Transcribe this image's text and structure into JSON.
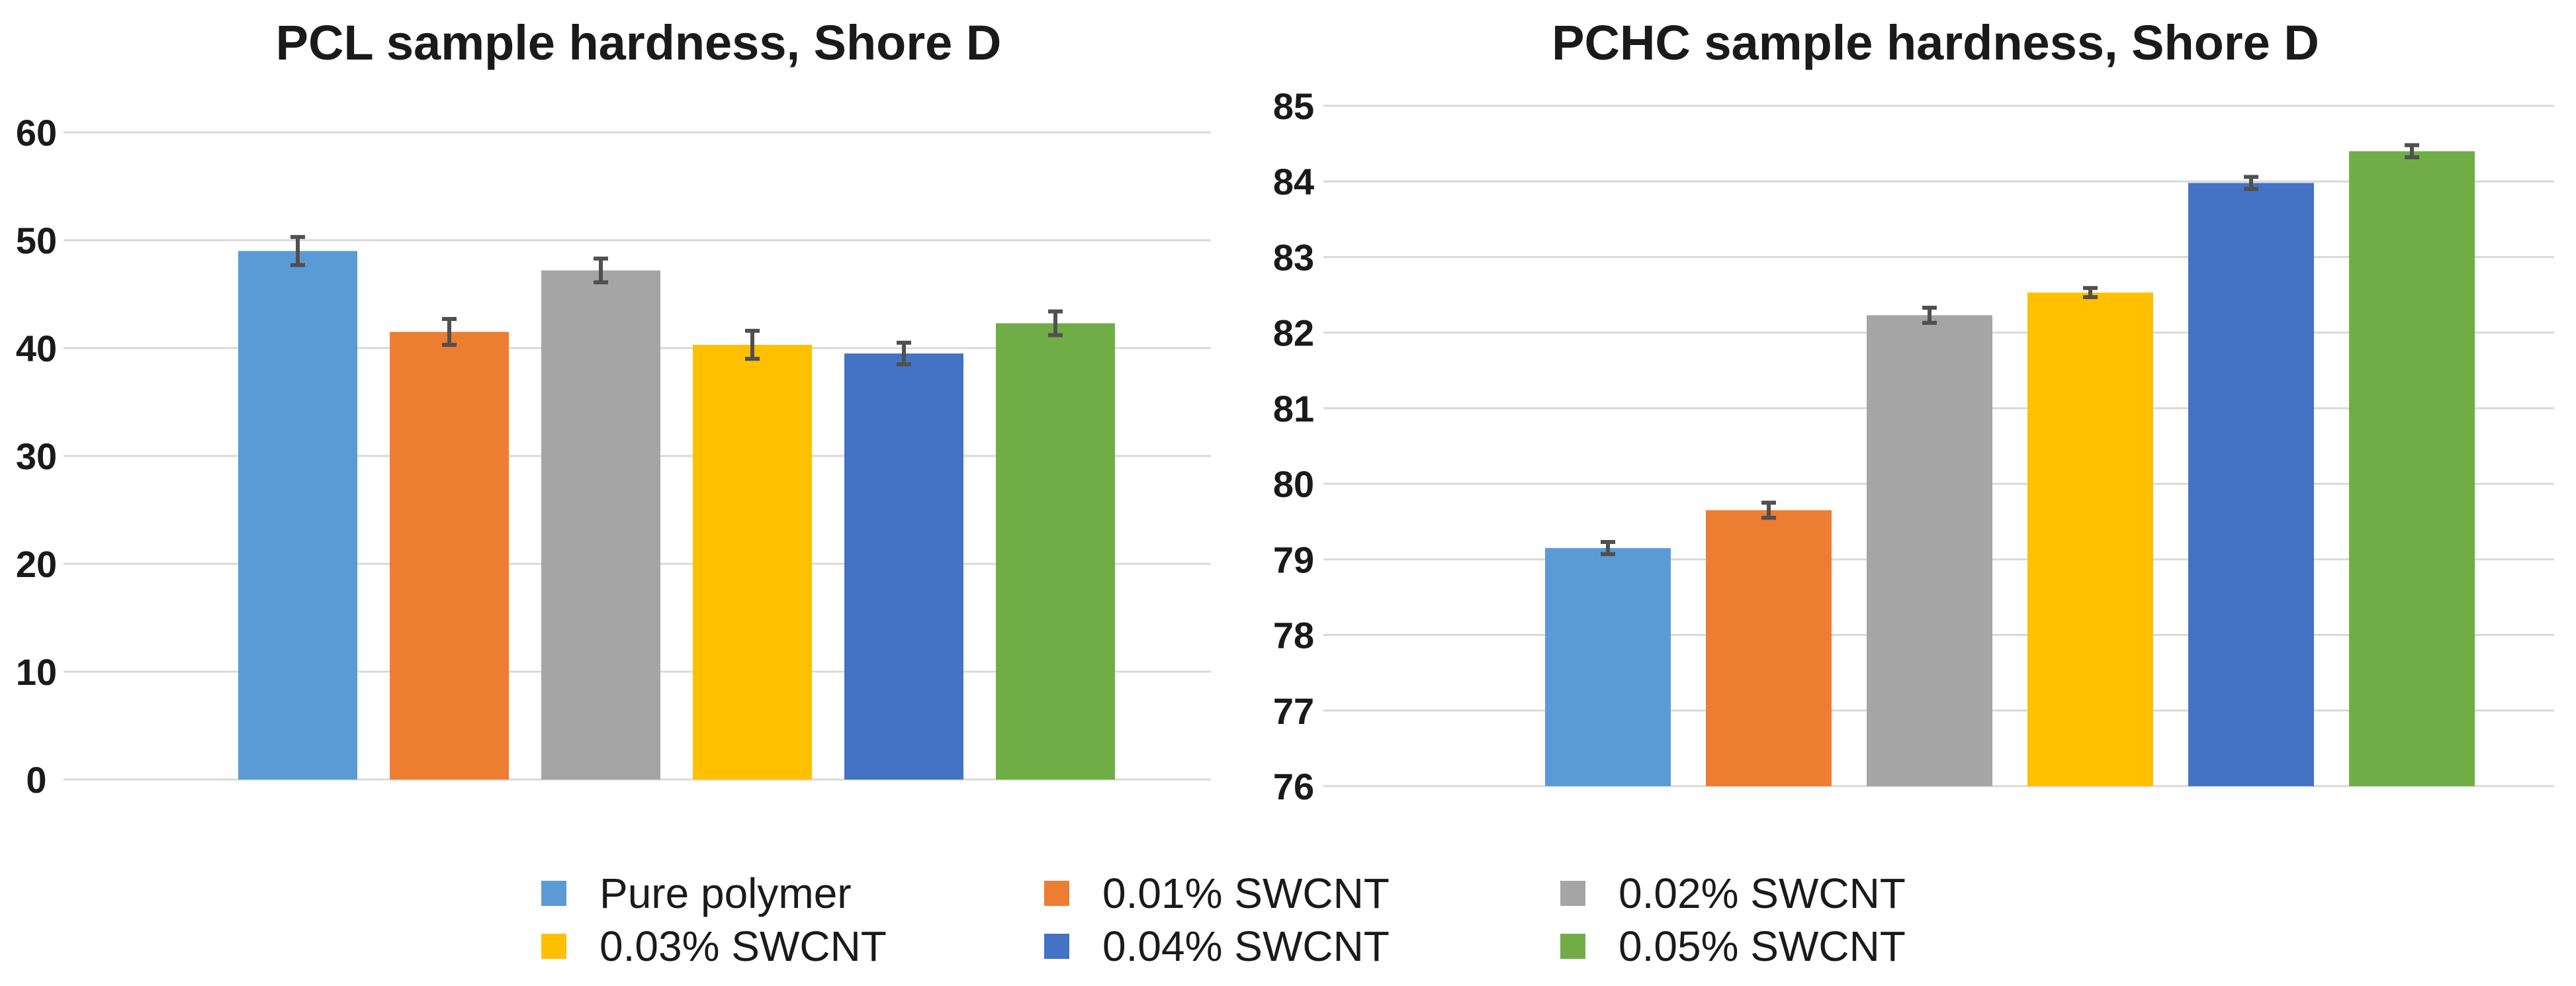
{
  "chart_data": [
    {
      "type": "bar",
      "title": "PCL sample hardness, Shore D",
      "xlabel": "",
      "ylabel": "",
      "ylim": [
        0,
        60
      ],
      "yticks": [
        0,
        10,
        20,
        30,
        40,
        50,
        60
      ],
      "grid": true,
      "categories": [
        "Pure polymer",
        "0.01% SWCNT",
        "0.02% SWCNT",
        "0.03% SWCNT",
        "0.04% SWCNT",
        "0.05% SWCNT"
      ],
      "values": [
        49.0,
        41.5,
        47.2,
        40.3,
        39.5,
        42.3
      ],
      "errors": [
        1.3,
        1.2,
        1.1,
        1.3,
        1.0,
        1.1
      ],
      "colors": [
        "#5b9bd5",
        "#ed7d31",
        "#a5a5a5",
        "#ffc000",
        "#4472c4",
        "#70ad47"
      ]
    },
    {
      "type": "bar",
      "title": "PCHC sample hardness, Shore D",
      "xlabel": "",
      "ylabel": "",
      "ylim": [
        76,
        85
      ],
      "yticks": [
        76,
        77,
        78,
        79,
        80,
        81,
        82,
        83,
        84,
        85
      ],
      "grid": true,
      "categories": [
        "Pure polymer",
        "0.01% SWCNT",
        "0.02% SWCNT",
        "0.03% SWCNT",
        "0.04% SWCNT",
        "0.05% SWCNT"
      ],
      "values": [
        79.15,
        79.65,
        82.23,
        82.53,
        83.98,
        84.4
      ],
      "errors": [
        0.08,
        0.1,
        0.1,
        0.06,
        0.08,
        0.08
      ],
      "colors": [
        "#5b9bd5",
        "#ed7d31",
        "#a5a5a5",
        "#ffc000",
        "#4472c4",
        "#70ad47"
      ]
    }
  ],
  "legend": {
    "items": [
      {
        "label": "Pure polymer",
        "color": "#5b9bd5"
      },
      {
        "label": "0.01% SWCNT",
        "color": "#ed7d31"
      },
      {
        "label": "0.02% SWCNT",
        "color": "#a5a5a5"
      },
      {
        "label": "0.03% SWCNT",
        "color": "#ffc000"
      },
      {
        "label": "0.04% SWCNT",
        "color": "#4472c4"
      },
      {
        "label": "0.05% SWCNT",
        "color": "#70ad47"
      }
    ]
  }
}
